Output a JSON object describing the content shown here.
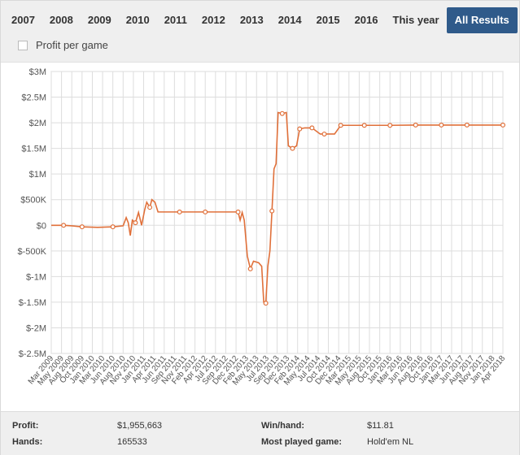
{
  "tabs": [
    {
      "label": "2007",
      "active": false
    },
    {
      "label": "2008",
      "active": false
    },
    {
      "label": "2009",
      "active": false
    },
    {
      "label": "2010",
      "active": false
    },
    {
      "label": "2011",
      "active": false
    },
    {
      "label": "2012",
      "active": false
    },
    {
      "label": "2013",
      "active": false
    },
    {
      "label": "2014",
      "active": false
    },
    {
      "label": "2015",
      "active": false
    },
    {
      "label": "2016",
      "active": false
    },
    {
      "label": "This year",
      "active": false
    },
    {
      "label": "All Results",
      "active": true
    }
  ],
  "profit_per_game": {
    "label": "Profit per game",
    "checked": false
  },
  "footer": {
    "profit_label": "Profit:",
    "profit_value": "$1,955,663",
    "hands_label": "Hands:",
    "hands_value": "165533",
    "winhand_label": "Win/hand:",
    "winhand_value": "$11.81",
    "most_played_label": "Most played game:",
    "most_played_value": "Hold'em NL"
  },
  "colors": {
    "accent": "#2f5a8a",
    "line": "#e0703a",
    "grid": "#dddddd"
  },
  "chart_data": {
    "type": "line",
    "title": "",
    "xlabel": "",
    "ylabel": "",
    "ylim": [
      -2500000,
      3000000
    ],
    "yticks": [
      -2500000,
      -2000000,
      -1500000,
      -1000000,
      -500000,
      0,
      500000,
      1000000,
      1500000,
      2000000,
      2500000,
      3000000
    ],
    "ytick_labels": [
      "$-2.5M",
      "$-2M",
      "$-1.5M",
      "$-1M",
      "$-500K",
      "$0",
      "$500K",
      "$1M",
      "$1.5M",
      "$2M",
      "$2.5M",
      "$3M"
    ],
    "xtick_labels": [
      "Mar 2009",
      "May 2009",
      "Aug 2009",
      "Oct 2009",
      "Jan 2010",
      "Mar 2010",
      "Jun 2010",
      "Aug 2010",
      "Nov 2010",
      "Jan 2011",
      "Apr 2011",
      "Jun 2011",
      "Sep 2011",
      "Nov 2011",
      "Feb 2012",
      "Apr 2012",
      "Jul 2012",
      "Sep 2012",
      "Dec 2012",
      "Feb 2013",
      "May 2013",
      "Jul 2013",
      "Sep 2013",
      "Dec 2013",
      "Feb 2014",
      "May 2014",
      "Jul 2014",
      "Oct 2014",
      "Dec 2014",
      "Mar 2015",
      "May 2015",
      "Aug 2015",
      "Oct 2015",
      "Jan 2016",
      "Mar 2016",
      "Jun 2016",
      "Aug 2016",
      "Oct 2016",
      "Jan 2017",
      "Mar 2017",
      "Jun 2017",
      "Aug 2017",
      "Nov 2017",
      "Jan 2018",
      "Apr 2018"
    ],
    "grid": true,
    "legend": "none",
    "series": [
      {
        "points": [
          [
            0.0,
            0
          ],
          [
            1.2,
            0
          ],
          [
            2.0,
            -10000
          ],
          [
            3.0,
            -30000
          ],
          [
            4.5,
            -40000
          ],
          [
            6.0,
            -30000
          ],
          [
            7.0,
            -10000
          ],
          [
            7.3,
            150000
          ],
          [
            7.5,
            50000
          ],
          [
            7.7,
            -200000
          ],
          [
            7.9,
            100000
          ],
          [
            8.2,
            50000
          ],
          [
            8.5,
            250000
          ],
          [
            8.8,
            0
          ],
          [
            9.1,
            300000
          ],
          [
            9.3,
            450000
          ],
          [
            9.6,
            350000
          ],
          [
            9.8,
            500000
          ],
          [
            10.1,
            450000
          ],
          [
            10.4,
            260000
          ],
          [
            12.5,
            260000
          ],
          [
            15.0,
            260000
          ],
          [
            18.2,
            260000
          ],
          [
            18.4,
            100000
          ],
          [
            18.6,
            250000
          ],
          [
            18.8,
            100000
          ],
          [
            19.1,
            -600000
          ],
          [
            19.4,
            -850000
          ],
          [
            19.7,
            -700000
          ],
          [
            20.2,
            -730000
          ],
          [
            20.5,
            -800000
          ],
          [
            20.7,
            -1500000
          ],
          [
            20.9,
            -1520000
          ],
          [
            21.1,
            -800000
          ],
          [
            21.3,
            -500000
          ],
          [
            21.5,
            280000
          ],
          [
            21.7,
            1100000
          ],
          [
            21.9,
            1200000
          ],
          [
            22.1,
            2200000
          ],
          [
            22.5,
            2180000
          ],
          [
            22.9,
            2200000
          ],
          [
            23.1,
            1550000
          ],
          [
            23.5,
            1500000
          ],
          [
            23.9,
            1550000
          ],
          [
            24.2,
            1880000
          ],
          [
            24.7,
            1900000
          ],
          [
            25.4,
            1900000
          ],
          [
            26.2,
            1780000
          ],
          [
            26.6,
            1780000
          ],
          [
            27.6,
            1780000
          ],
          [
            28.2,
            1950000
          ],
          [
            30.5,
            1950000
          ],
          [
            33.0,
            1950000
          ],
          [
            35.5,
            1955000
          ],
          [
            38.0,
            1955000
          ],
          [
            40.5,
            1955000
          ],
          [
            44.0,
            1955663
          ]
        ],
        "markers": [
          [
            1.2,
            0
          ],
          [
            3.0,
            -30000
          ],
          [
            6.0,
            -30000
          ],
          [
            8.2,
            50000
          ],
          [
            9.6,
            350000
          ],
          [
            12.5,
            260000
          ],
          [
            15.0,
            260000
          ],
          [
            18.2,
            260000
          ],
          [
            19.4,
            -850000
          ],
          [
            20.9,
            -1520000
          ],
          [
            21.5,
            280000
          ],
          [
            22.5,
            2180000
          ],
          [
            23.5,
            1500000
          ],
          [
            24.2,
            1880000
          ],
          [
            25.4,
            1900000
          ],
          [
            26.6,
            1780000
          ],
          [
            28.2,
            1950000
          ],
          [
            30.5,
            1950000
          ],
          [
            33.0,
            1950000
          ],
          [
            35.5,
            1955000
          ],
          [
            38.0,
            1955000
          ],
          [
            40.5,
            1955000
          ],
          [
            44.0,
            1955663
          ]
        ]
      }
    ]
  }
}
